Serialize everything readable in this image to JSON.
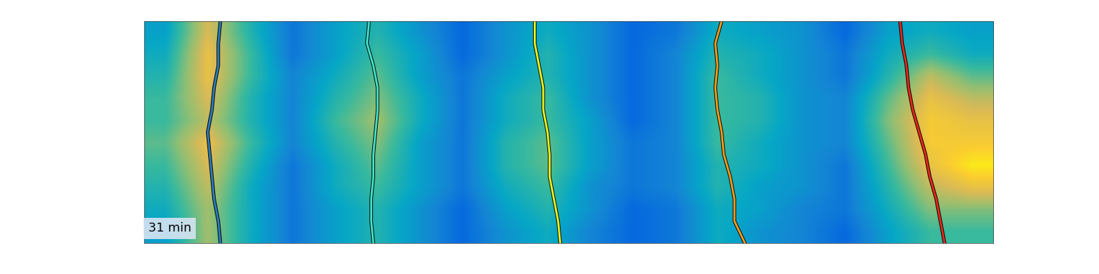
{
  "chart_data": {
    "type": "heatmap",
    "annotation": "31 min",
    "xlim": [
      0,
      40
    ],
    "ylim": [
      10,
      0
    ],
    "tick_labels": false,
    "clim": [
      0,
      1
    ],
    "cells": [
      [
        0.35,
        0.75,
        0.45,
        0.2,
        0.35,
        0.45,
        0.3,
        0.15,
        0.3,
        0.4,
        0.3,
        0.15,
        0.2,
        0.4,
        0.35,
        0.3,
        0.15,
        0.35,
        0.4,
        0.35
      ],
      [
        0.4,
        0.8,
        0.5,
        0.2,
        0.35,
        0.5,
        0.35,
        0.15,
        0.3,
        0.45,
        0.3,
        0.15,
        0.25,
        0.45,
        0.4,
        0.3,
        0.2,
        0.4,
        0.5,
        0.4
      ],
      [
        0.45,
        0.8,
        0.5,
        0.25,
        0.4,
        0.55,
        0.35,
        0.2,
        0.35,
        0.45,
        0.3,
        0.15,
        0.25,
        0.5,
        0.4,
        0.3,
        0.2,
        0.45,
        0.7,
        0.55
      ],
      [
        0.5,
        0.75,
        0.45,
        0.25,
        0.45,
        0.6,
        0.4,
        0.2,
        0.4,
        0.5,
        0.3,
        0.15,
        0.25,
        0.5,
        0.45,
        0.3,
        0.25,
        0.55,
        0.8,
        0.7
      ],
      [
        0.5,
        0.7,
        0.45,
        0.25,
        0.5,
        0.65,
        0.4,
        0.2,
        0.4,
        0.5,
        0.35,
        0.15,
        0.25,
        0.5,
        0.45,
        0.3,
        0.25,
        0.6,
        0.85,
        0.8
      ],
      [
        0.55,
        0.8,
        0.5,
        0.25,
        0.45,
        0.6,
        0.35,
        0.2,
        0.45,
        0.55,
        0.35,
        0.2,
        0.25,
        0.5,
        0.4,
        0.3,
        0.25,
        0.55,
        0.85,
        0.85
      ],
      [
        0.5,
        0.75,
        0.45,
        0.2,
        0.4,
        0.55,
        0.35,
        0.2,
        0.45,
        0.55,
        0.35,
        0.2,
        0.25,
        0.45,
        0.4,
        0.3,
        0.2,
        0.5,
        0.8,
        0.95
      ],
      [
        0.45,
        0.7,
        0.4,
        0.2,
        0.4,
        0.5,
        0.35,
        0.2,
        0.4,
        0.5,
        0.3,
        0.2,
        0.25,
        0.45,
        0.35,
        0.3,
        0.2,
        0.45,
        0.7,
        0.8
      ],
      [
        0.4,
        0.65,
        0.4,
        0.2,
        0.35,
        0.45,
        0.3,
        0.15,
        0.35,
        0.45,
        0.3,
        0.15,
        0.2,
        0.4,
        0.35,
        0.25,
        0.2,
        0.4,
        0.6,
        0.6
      ],
      [
        0.35,
        0.65,
        0.4,
        0.2,
        0.35,
        0.45,
        0.3,
        0.15,
        0.3,
        0.4,
        0.25,
        0.15,
        0.2,
        0.4,
        0.3,
        0.25,
        0.15,
        0.35,
        0.5,
        0.5
      ]
    ],
    "y": [
      0,
      1,
      2,
      3,
      4,
      5,
      6,
      7,
      8,
      9,
      10
    ],
    "series": [
      {
        "color": "#2b7bba",
        "x": [
          3.6,
          3.5,
          3.5,
          3.3,
          3.2,
          3.0,
          3.1,
          3.2,
          3.3,
          3.5,
          3.6
        ]
      },
      {
        "color": "#3fe0c5",
        "x": [
          10.6,
          10.5,
          10.8,
          11.0,
          11.0,
          10.9,
          10.8,
          10.8,
          10.7,
          10.7,
          10.8
        ]
      },
      {
        "color": "#e6f022",
        "x": [
          18.4,
          18.4,
          18.6,
          18.8,
          18.8,
          19.0,
          19.1,
          19.1,
          19.3,
          19.5,
          19.6
        ]
      },
      {
        "color": "#f39a1a",
        "x": [
          27.2,
          26.9,
          27.0,
          26.9,
          27.0,
          27.2,
          27.3,
          27.6,
          27.8,
          27.8,
          28.3
        ]
      },
      {
        "color": "#e4281a",
        "x": [
          35.6,
          35.7,
          35.9,
          36.0,
          36.2,
          36.5,
          36.8,
          37.0,
          37.3,
          37.5,
          37.7
        ]
      }
    ]
  }
}
